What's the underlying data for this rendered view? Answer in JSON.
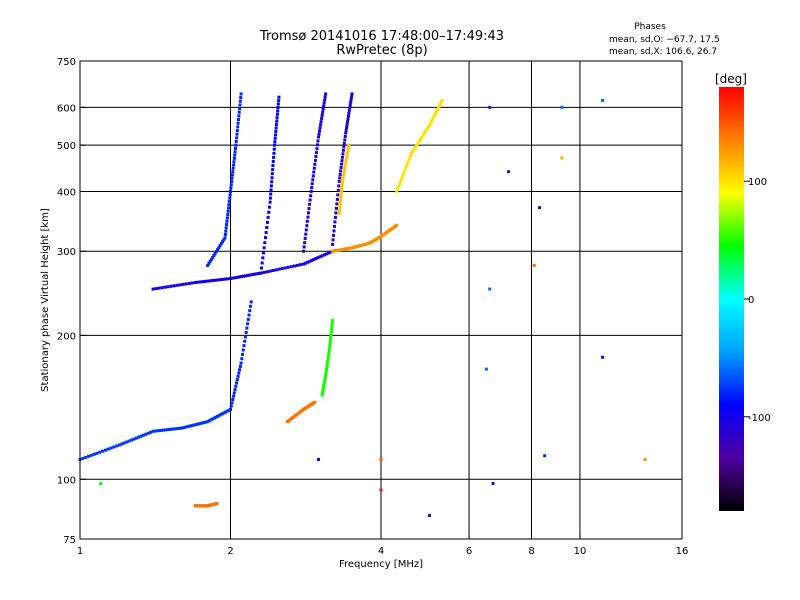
{
  "chart_data": {
    "type": "scatter",
    "title": "Tromsø 20141016 17:48:00–17:49:43",
    "subtitle": "RwPretec (8p)",
    "xlabel": "Frequency [MHz]",
    "ylabel": "Stationary phase Virtual Height [km]",
    "x_scale": "log",
    "y_scale": "log",
    "xlim": [
      1,
      16
    ],
    "ylim": [
      75,
      750
    ],
    "x_ticks": [
      1,
      2,
      4,
      6,
      8,
      10,
      16
    ],
    "y_ticks": [
      75,
      100,
      200,
      300,
      400,
      500,
      600,
      750
    ],
    "x_gridlines": [
      2,
      4,
      6,
      8,
      10
    ],
    "y_gridlines": [
      100,
      200,
      300,
      400,
      500,
      600
    ],
    "grid": true,
    "phase_stats": {
      "heading": "Phases",
      "line_o": "mean, sd,O: −67.7, 17.5",
      "line_x": "mean, sd,X: 106.6, 26.7"
    },
    "colorbar": {
      "label": "[deg]",
      "min": -180,
      "max": 180,
      "ticks": [
        100,
        0,
        -100
      ],
      "colors": [
        "#000000",
        "#5000a0",
        "#0000ff",
        "#00a0ff",
        "#00ffff",
        "#00ff00",
        "#ffff00",
        "#ff8000",
        "#ff0000"
      ]
    },
    "traces": [
      {
        "x": [
          1.0,
          1.2,
          1.4,
          1.6,
          1.8,
          2.0
        ],
        "y": [
          110,
          118,
          126,
          128,
          132,
          140
        ],
        "phase": -75
      },
      {
        "x": [
          1.4,
          1.7,
          2.0,
          2.3,
          2.8,
          3.2
        ],
        "y": [
          250,
          258,
          263,
          270,
          282,
          300
        ],
        "phase": -100
      },
      {
        "x": [
          1.8,
          1.95,
          2.0,
          2.05,
          2.1
        ],
        "y": [
          280,
          320,
          400,
          500,
          640
        ],
        "phase": -80
      },
      {
        "x": [
          2.3,
          2.4,
          2.45,
          2.5
        ],
        "y": [
          270,
          380,
          500,
          630
        ],
        "phase": -90
      },
      {
        "x": [
          2.8,
          2.9,
          3.0,
          3.1
        ],
        "y": [
          300,
          400,
          520,
          640
        ],
        "phase": -105
      },
      {
        "x": [
          3.2,
          3.3,
          3.4,
          3.5
        ],
        "y": [
          310,
          420,
          530,
          640
        ],
        "phase": -110
      },
      {
        "x": [
          3.2,
          3.5,
          3.8,
          4.0,
          4.3
        ],
        "y": [
          300,
          305,
          312,
          322,
          340
        ],
        "phase": 130
      },
      {
        "x": [
          3.3,
          3.35,
          3.45
        ],
        "y": [
          360,
          420,
          500
        ],
        "phase": 110
      },
      {
        "x": [
          2.6,
          2.8,
          2.95
        ],
        "y": [
          132,
          140,
          145
        ],
        "phase": 140
      },
      {
        "x": [
          3.05,
          3.1,
          3.15,
          3.2
        ],
        "y": [
          150,
          165,
          185,
          215
        ],
        "phase": 50
      },
      {
        "x": [
          2.0,
          2.1,
          2.2
        ],
        "y": [
          140,
          175,
          235
        ],
        "phase": -80
      },
      {
        "x": [
          1.7,
          1.8,
          1.88
        ],
        "y": [
          88,
          88,
          89
        ],
        "phase": 140
      },
      {
        "x": [
          4.3,
          4.6,
          5.0,
          5.3
        ],
        "y": [
          400,
          480,
          550,
          620
        ],
        "phase": 100
      }
    ],
    "scatter_points": [
      {
        "x": 6.6,
        "y": 600,
        "phase": -80
      },
      {
        "x": 6.6,
        "y": 250,
        "phase": -60
      },
      {
        "x": 6.5,
        "y": 170,
        "phase": -60
      },
      {
        "x": 6.7,
        "y": 98,
        "phase": -100
      },
      {
        "x": 7.2,
        "y": 440,
        "phase": -130
      },
      {
        "x": 8.3,
        "y": 370,
        "phase": -120
      },
      {
        "x": 8.1,
        "y": 280,
        "phase": 140
      },
      {
        "x": 9.2,
        "y": 600,
        "phase": -60
      },
      {
        "x": 9.2,
        "y": 470,
        "phase": 120
      },
      {
        "x": 11.1,
        "y": 620,
        "phase": -60
      },
      {
        "x": 11.1,
        "y": 180,
        "phase": -100
      },
      {
        "x": 13.5,
        "y": 110,
        "phase": 130
      },
      {
        "x": 4.0,
        "y": 110,
        "phase": 150
      },
      {
        "x": 4.0,
        "y": 95,
        "phase": 170
      },
      {
        "x": 3.0,
        "y": 110,
        "phase": -110
      },
      {
        "x": 5.0,
        "y": 84,
        "phase": -120
      },
      {
        "x": 1.1,
        "y": 98,
        "phase": 40
      },
      {
        "x": 8.5,
        "y": 112,
        "phase": -80
      }
    ]
  }
}
